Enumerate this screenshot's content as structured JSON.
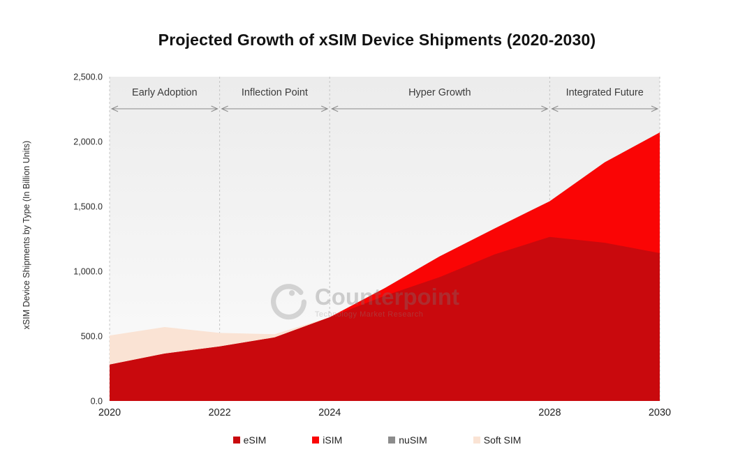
{
  "title": "Projected Growth of xSIM Device Shipments (2020-2030)",
  "y_axis": {
    "label": "xSIM Device Shipments by Type (In Billion Units)",
    "tick_labels": [
      "0.0",
      "500.0",
      "1,000.0",
      "1,500.0",
      "2,000.0",
      "2,500.0"
    ],
    "tick_values": [
      0,
      500,
      1000,
      1500,
      2000,
      2500
    ]
  },
  "x_axis": {
    "ticks": [
      {
        "label": "2020",
        "year": 2020
      },
      {
        "label": "2022",
        "year": 2022
      },
      {
        "label": "2024",
        "year": 2024
      },
      {
        "label": "2028",
        "year": 2028
      },
      {
        "label": "2030",
        "year": 2030
      }
    ]
  },
  "phases": [
    {
      "label": "Early Adoption",
      "start": 2020,
      "end": 2022
    },
    {
      "label": "Inflection Point",
      "start": 2022,
      "end": 2024
    },
    {
      "label": "Hyper Growth",
      "start": 2024,
      "end": 2028
    },
    {
      "label": "Integrated Future",
      "start": 2028,
      "end": 2030
    }
  ],
  "legend": [
    {
      "label": "eSIM",
      "color": "#C9090D"
    },
    {
      "label": "iSIM",
      "color": "#FA0505"
    },
    {
      "label": "nuSIM",
      "color": "#8C8C8C"
    },
    {
      "label": "Soft SIM",
      "color": "#FAE3D4"
    }
  ],
  "watermark": {
    "brand": "Counterpoint",
    "tagline": "Technology Market Research"
  },
  "chart_data": {
    "type": "area",
    "stacked": true,
    "title": "Projected Growth of xSIM Device Shipments (2020-2030)",
    "xlabel": "",
    "ylabel": "xSIM Device Shipments by Type (In Billion Units)",
    "x": [
      2020,
      2021,
      2022,
      2023,
      2024,
      2025,
      2026,
      2027,
      2028,
      2029,
      2030
    ],
    "series": [
      {
        "name": "eSIM",
        "color": "#C9090D",
        "values": [
          280,
          365,
          420,
          490,
          645,
          810,
          955,
          1130,
          1265,
          1220,
          1140
        ]
      },
      {
        "name": "iSIM",
        "color": "#FA0505",
        "values": [
          0,
          0,
          0,
          0,
          0,
          60,
          160,
          200,
          275,
          620,
          930
        ]
      },
      {
        "name": "nuSIM",
        "color": "#8C8C8C",
        "values": [
          0,
          0,
          0,
          0,
          0,
          0,
          0,
          0,
          0,
          0,
          0
        ]
      },
      {
        "name": "Soft SIM",
        "color": "#FAE3D4",
        "values": [
          225,
          205,
          105,
          25,
          0,
          0,
          0,
          0,
          0,
          0,
          0
        ]
      }
    ],
    "ylim": [
      0,
      2500
    ],
    "xlim": [
      2020,
      2030
    ],
    "grid": false,
    "legend_position": "bottom",
    "annotations": [
      "Early Adoption",
      "Inflection Point",
      "Hyper Growth",
      "Integrated Future"
    ]
  },
  "style": {
    "band_top": "#ECECEC",
    "band_bottom": "#FDFDFD",
    "dash_line": "#C4C4C4",
    "arrow": "#8A8A8A",
    "phase_label": "#3c3c3c",
    "tick_text": "#2b2b2b"
  }
}
